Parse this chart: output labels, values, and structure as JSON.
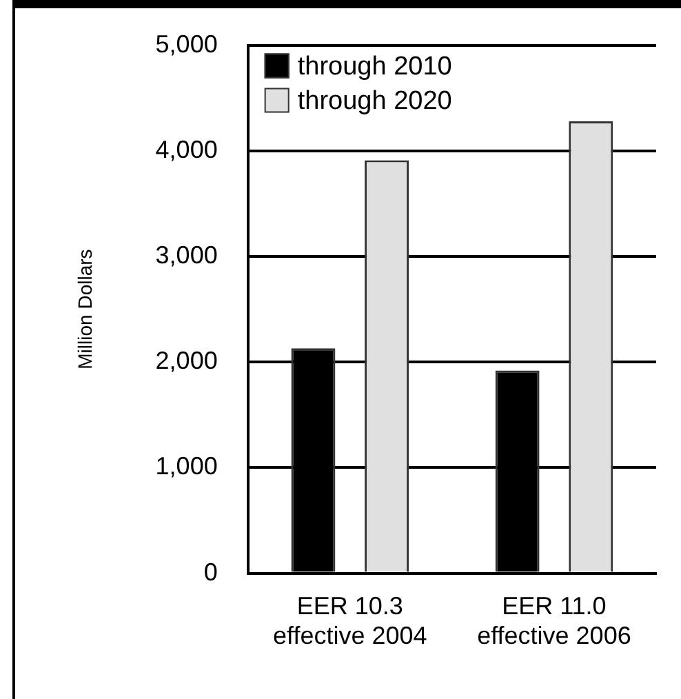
{
  "chart_data": {
    "type": "bar",
    "ylabel": "Million Dollars",
    "categories": [
      "EER 10.3\neffective 2004",
      "EER 11.0\neffective 2006"
    ],
    "series": [
      {
        "name": "through 2010",
        "color": "#000000",
        "values": [
          2130,
          1920
        ]
      },
      {
        "name": "through 2020",
        "color": "#e0e0e0",
        "values": [
          3910,
          4280
        ]
      }
    ],
    "ylim": [
      0,
      5000
    ],
    "yticks": [
      {
        "value": 0,
        "label": "0"
      },
      {
        "value": 1000,
        "label": "1,000"
      },
      {
        "value": 2000,
        "label": "2,000"
      },
      {
        "value": 3000,
        "label": "3,000"
      },
      {
        "value": 4000,
        "label": "4,000"
      },
      {
        "value": 5000,
        "label": "5,000"
      }
    ],
    "grid": "y",
    "legend": "top left"
  }
}
